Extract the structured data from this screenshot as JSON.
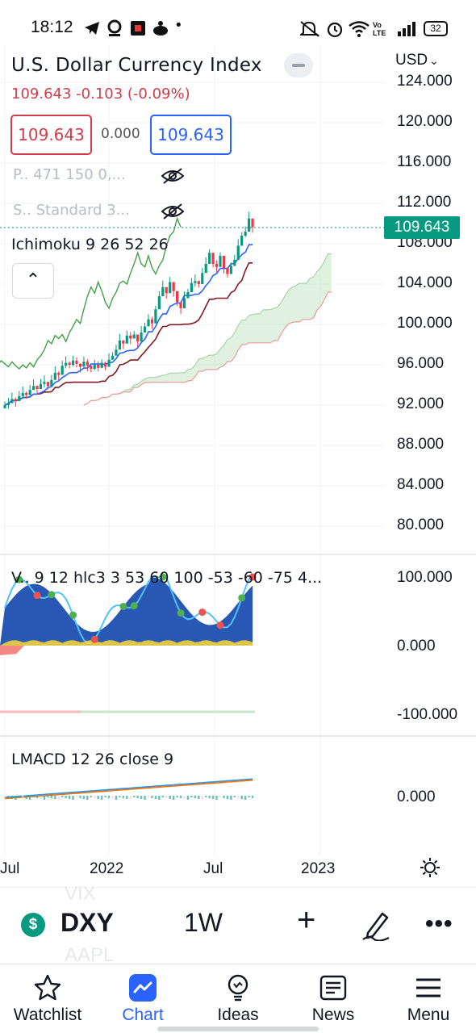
{
  "status_bar": {
    "time": "18:12",
    "icons_left": [
      "telegram-icon",
      "app-icon",
      "news-icon",
      "cooking-icon",
      "dot-icon"
    ],
    "icons_right": [
      "mute-icon",
      "alarm-icon",
      "wifi-icon",
      "volte-icon",
      "signal-icon"
    ],
    "volte_label": "Vo LTE",
    "battery": "32"
  },
  "instrument": {
    "title": "U.S. Dollar Currency Index",
    "last_change": "109.643 -0.103 (-0.09%)",
    "bid": "109.643",
    "spread": "0.000",
    "ask": "109.643",
    "currency": "USD",
    "currency_chevron": "⌄"
  },
  "indicators": {
    "legend_p": "P.. 471 150 0,...",
    "legend_s": "S.. Standard 3...",
    "ichimoku": "Ichimoku 9 26 52 26",
    "collapse_glyph": "⌃",
    "oscillator": "V.. 9 12 hlc3 3 53 60 100 -53 -60 -75 4...",
    "lmacd": "LMACD 12 26 close 9"
  },
  "price_axis": [
    "124.000",
    "120.000",
    "116.000",
    "112.000",
    "108.000",
    "104.000",
    "100.000",
    "96.000",
    "92.000",
    "88.000",
    "84.000",
    "80.000"
  ],
  "last_price_tag": "109.643",
  "osc_axis": [
    "100.000",
    "0.000",
    "-100.000"
  ],
  "lmacd_axis": [
    "0.000"
  ],
  "time_axis": [
    "Jul",
    "2022",
    "Jul",
    "2023"
  ],
  "colors": {
    "up": "#089981",
    "down": "#f23645",
    "accent": "#2962ff",
    "tenkan": "#2962ff",
    "kijun": "#801922",
    "chikou": "#43a047",
    "cloud_green": "#a5d6a7",
    "cloud_red": "#ef9a9a"
  },
  "chart_data": {
    "type": "candlestick",
    "title": "U.S. Dollar Currency Index",
    "interval": "1W",
    "ylim": [
      78,
      125
    ],
    "closes": [
      92.0,
      92.2,
      92.6,
      92.4,
      92.9,
      93.2,
      93.0,
      93.5,
      93.9,
      93.6,
      94.1,
      94.3,
      93.9,
      94.5,
      95.2,
      95.0,
      95.9,
      96.2,
      96.0,
      96.4,
      96.1,
      95.8,
      96.3,
      95.9,
      95.6,
      96.0,
      95.7,
      96.2,
      95.8,
      96.5,
      96.9,
      97.5,
      98.4,
      98.1,
      98.9,
      98.6,
      99.0,
      98.3,
      99.2,
      99.8,
      100.5,
      100.1,
      101.5,
      102.8,
      103.7,
      103.1,
      104.2,
      103.3,
      102.2,
      101.6,
      102.6,
      103.2,
      104.1,
      104.3,
      104.0,
      105.1,
      106.0,
      107.1,
      106.0,
      105.7,
      106.8,
      105.6,
      105.0,
      105.8,
      106.4,
      107.8,
      108.8,
      109.2,
      110.5,
      109.643
    ],
    "x_ticks": [
      "Jul",
      "2022",
      "Jul",
      "2023"
    ]
  },
  "toolbar": {
    "symbol_glyph": "$",
    "symbol": "DXY",
    "interval": "1W",
    "add": "+",
    "more": "•••",
    "ghost_1": "VIX",
    "ghost_2": "AAPL"
  },
  "nav": {
    "watchlist": "Watchlist",
    "chart": "Chart",
    "ideas": "Ideas",
    "news": "News",
    "menu": "Menu"
  }
}
